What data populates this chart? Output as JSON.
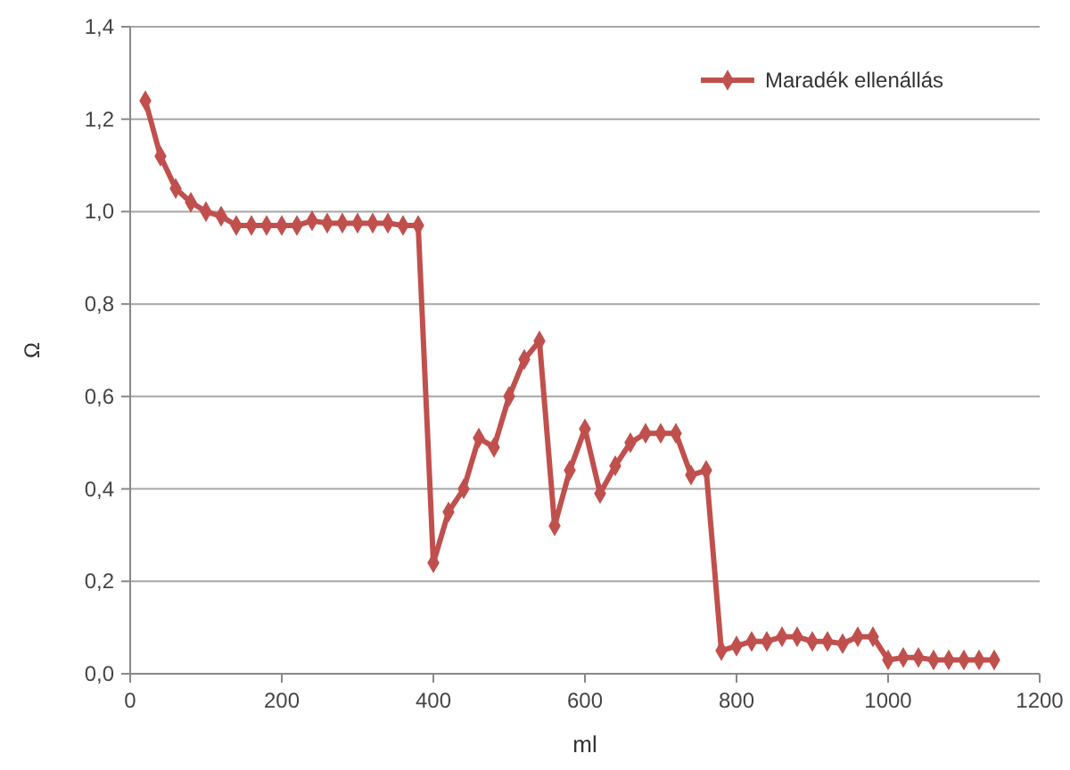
{
  "chart_data": {
    "type": "line",
    "xlabel": "ml",
    "ylabel": "Ω",
    "x": [
      20,
      40,
      60,
      80,
      100,
      120,
      140,
      160,
      180,
      200,
      220,
      240,
      260,
      280,
      300,
      320,
      340,
      360,
      380,
      400,
      420,
      440,
      460,
      480,
      500,
      520,
      540,
      560,
      580,
      600,
      620,
      640,
      660,
      680,
      700,
      720,
      740,
      760,
      780,
      800,
      820,
      840,
      860,
      880,
      900,
      920,
      940,
      960,
      980,
      1000,
      1020,
      1040,
      1060,
      1080,
      1100,
      1120,
      1140
    ],
    "series": [
      {
        "name": "Maradék ellenállás",
        "color": "#c0504d",
        "values": [
          1.24,
          1.12,
          1.05,
          1.02,
          1.0,
          0.99,
          0.97,
          0.97,
          0.97,
          0.97,
          0.97,
          0.98,
          0.975,
          0.975,
          0.975,
          0.975,
          0.975,
          0.97,
          0.97,
          0.24,
          0.35,
          0.4,
          0.51,
          0.49,
          0.6,
          0.68,
          0.72,
          0.32,
          0.44,
          0.53,
          0.39,
          0.45,
          0.5,
          0.52,
          0.52,
          0.52,
          0.43,
          0.44,
          0.05,
          0.06,
          0.07,
          0.07,
          0.08,
          0.08,
          0.07,
          0.07,
          0.065,
          0.08,
          0.08,
          0.03,
          0.035,
          0.035,
          0.03,
          0.03,
          0.03,
          0.03,
          0.03
        ]
      }
    ],
    "xlim": [
      0,
      1200
    ],
    "xticks": [
      0,
      200,
      400,
      600,
      800,
      1000,
      1200
    ],
    "ylim": [
      0,
      1.4
    ],
    "yticks": [
      {
        "value": 0,
        "label": "0,0"
      },
      {
        "value": 0.2,
        "label": "0,2"
      },
      {
        "value": 0.4,
        "label": "0,4"
      },
      {
        "value": 0.6,
        "label": "0,6"
      },
      {
        "value": 0.8,
        "label": "0,8"
      },
      {
        "value": 1,
        "label": "1,0"
      },
      {
        "value": 1.2,
        "label": "1,2"
      },
      {
        "value": 1.4,
        "label": "1,4"
      }
    ],
    "grid": "y",
    "legend": "top right",
    "marker": "diamond",
    "line_style": "solid"
  }
}
